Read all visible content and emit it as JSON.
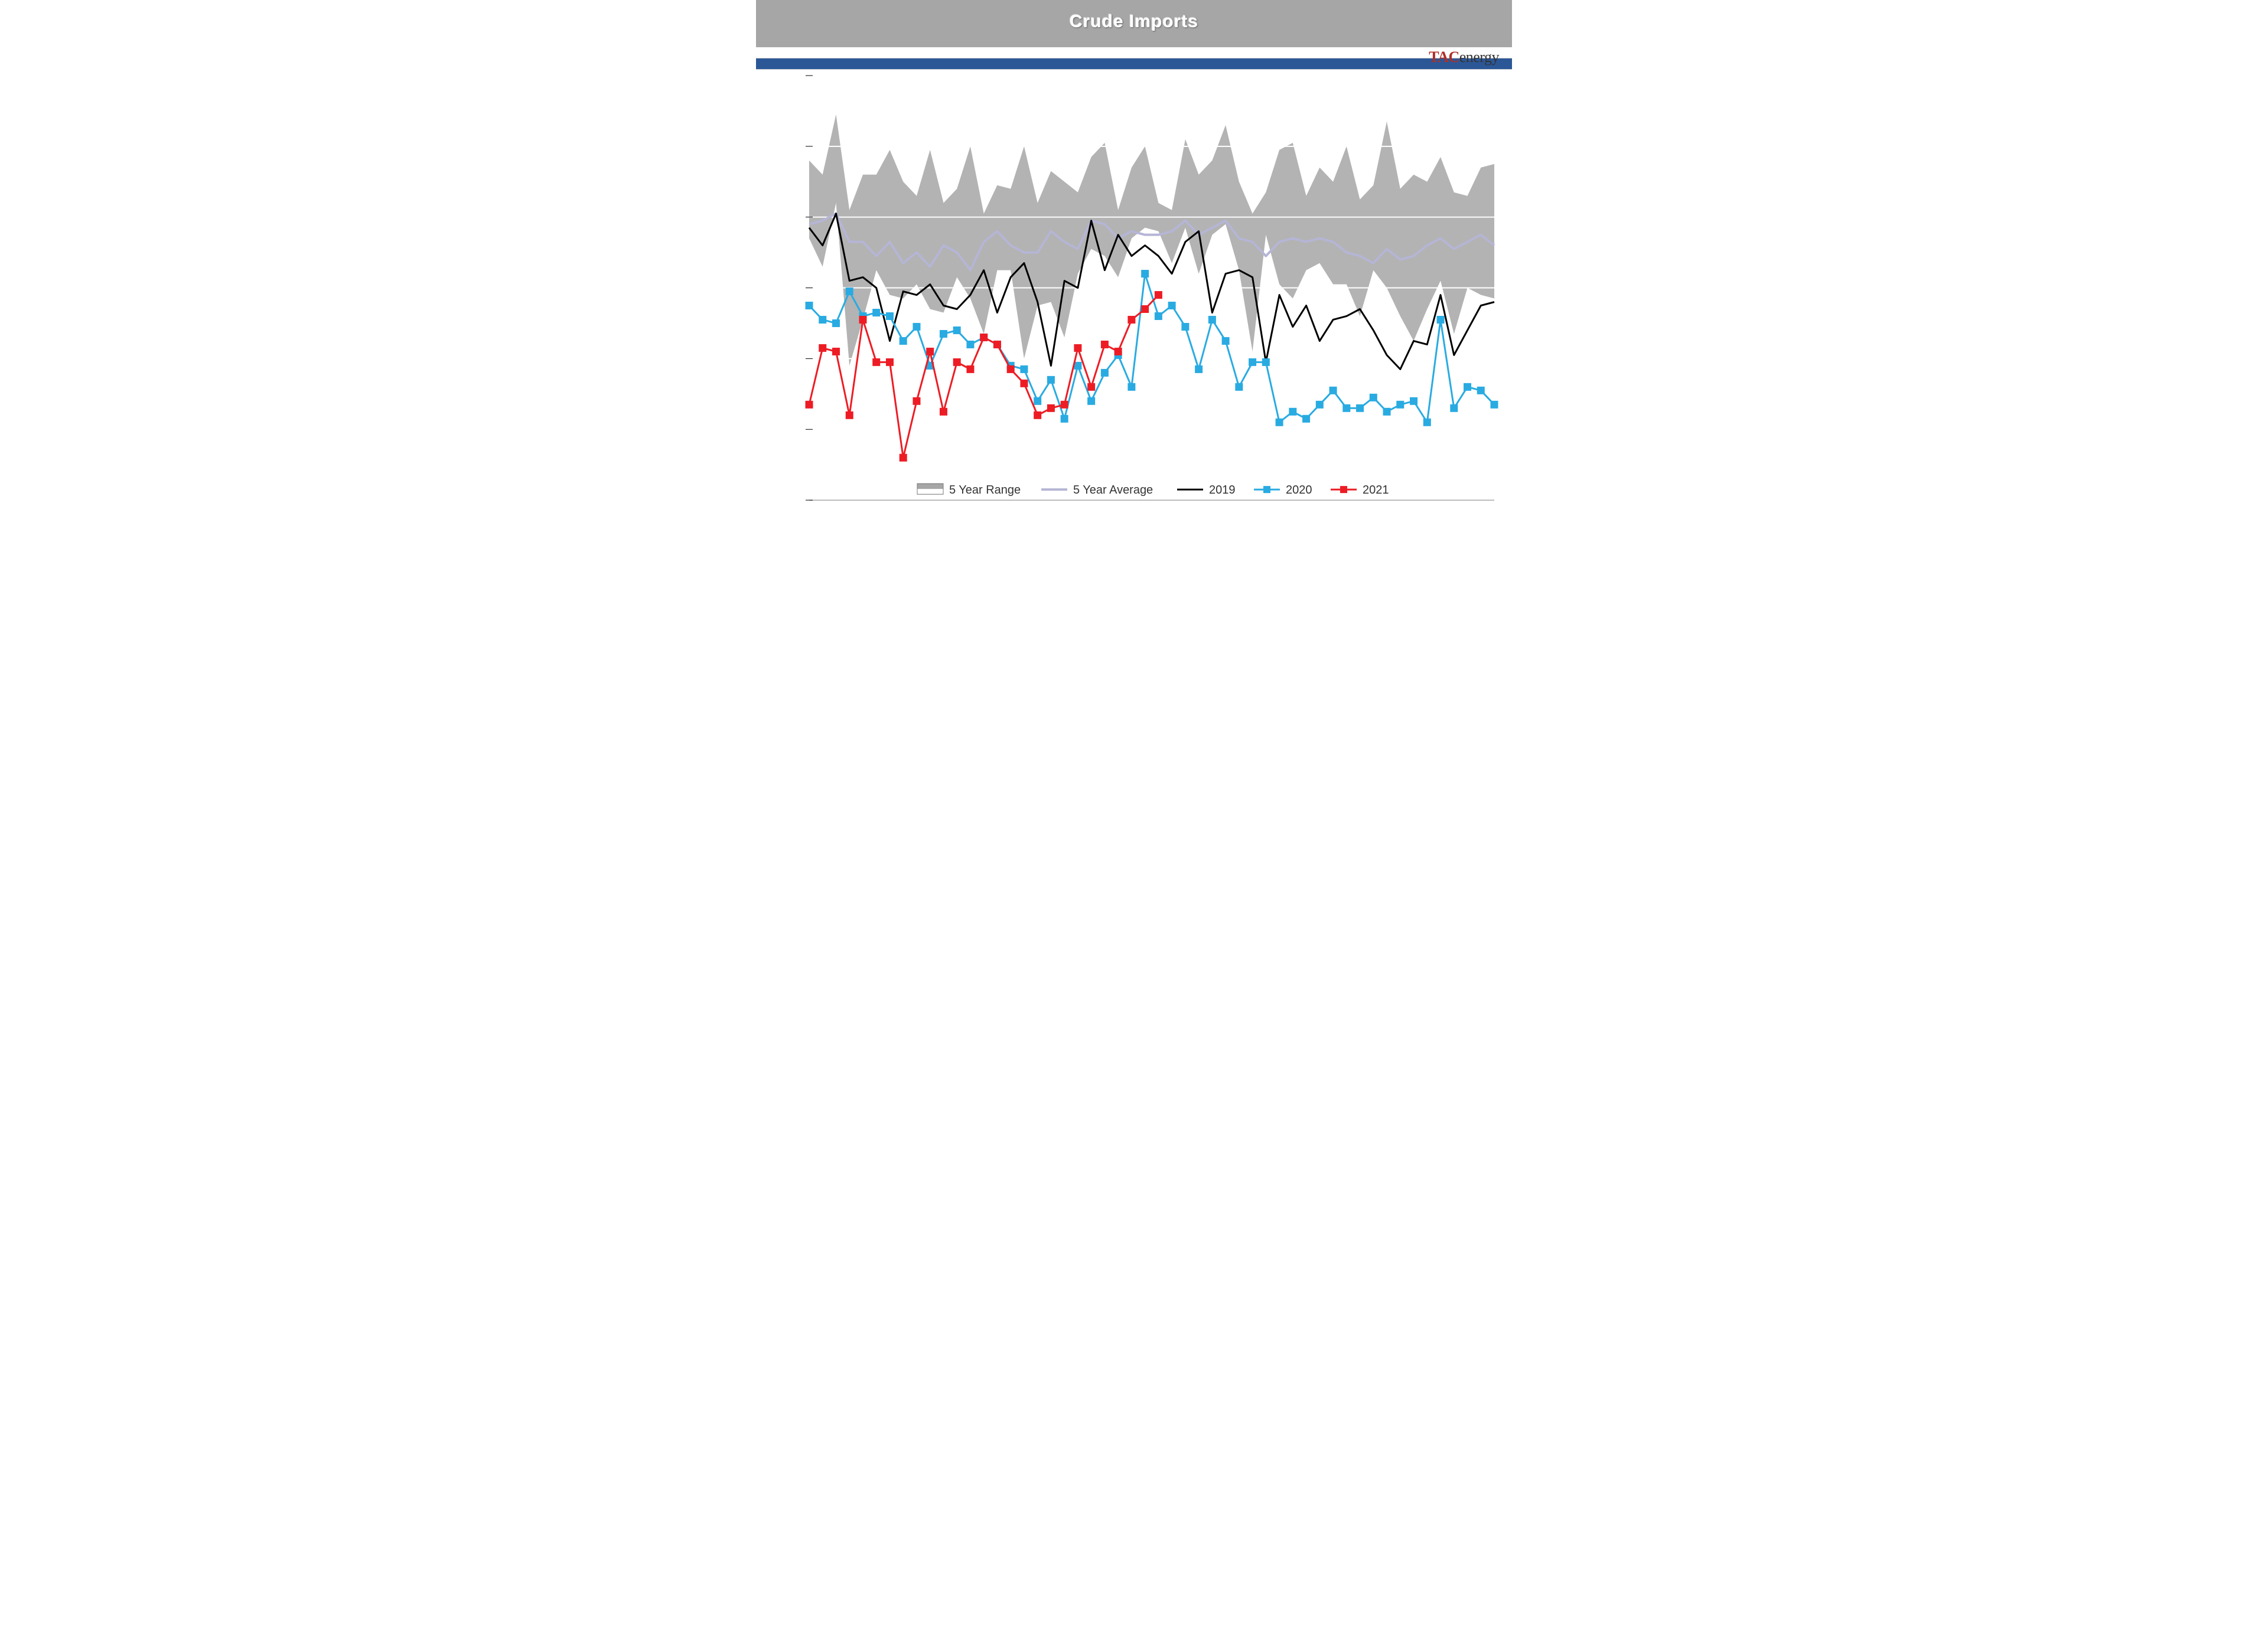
{
  "header": {
    "title": "Crude Imports"
  },
  "logo": {
    "prefix": "TAC",
    "suffix": "energy"
  },
  "chart": {
    "type": "line-with-band",
    "weeks": 52,
    "ylim": [
      4000,
      10000
    ],
    "ytick_step": 1000,
    "background_color": "#ffffff",
    "grid_color": "#ffffff",
    "title_band_color": "#a6a6a6",
    "blue_bar_color": "#2b5797",
    "legend": [
      {
        "label": "5 Year Range",
        "type": "band",
        "fill": "#a6a6a6"
      },
      {
        "label": "5 Year Average",
        "type": "line",
        "color": "#b5b5d6",
        "width": 4
      },
      {
        "label": "2019",
        "type": "line",
        "color": "#000000",
        "width": 3
      },
      {
        "label": "2020",
        "type": "line",
        "color": "#29abe2",
        "width": 3,
        "marker": "square",
        "marker_size": 12
      },
      {
        "label": "2021",
        "type": "line",
        "color": "#ed1c24",
        "width": 3,
        "marker": "square",
        "marker_size": 12
      }
    ],
    "series": {
      "range_high": [
        8800,
        8600,
        9450,
        8100,
        8600,
        8600,
        8950,
        8500,
        8300,
        8950,
        8200,
        8400,
        9000,
        8050,
        8450,
        8400,
        9000,
        8200,
        8650,
        8500,
        8350,
        8850,
        9050,
        8100,
        8700,
        9000,
        8200,
        8100,
        9100,
        8600,
        8800,
        9300,
        8500,
        8050,
        8350,
        8950,
        9050,
        8300,
        8700,
        8500,
        9000,
        8250,
        8450,
        9350,
        8400,
        8600,
        8500,
        8850,
        8350,
        8300,
        8700,
        8750
      ],
      "range_low": [
        7700,
        7300,
        8200,
        5900,
        6550,
        7250,
        6900,
        6850,
        7050,
        6700,
        6650,
        7150,
        6850,
        6350,
        7250,
        7250,
        6000,
        6750,
        6800,
        6300,
        7200,
        7550,
        7450,
        7150,
        7700,
        7850,
        7800,
        7350,
        7850,
        7200,
        7750,
        7900,
        7250,
        6100,
        7750,
        7050,
        6850,
        7250,
        7350,
        7050,
        7050,
        6600,
        7250,
        7000,
        6600,
        6250,
        6700,
        7100,
        6350,
        7000,
        6900,
        6850
      ],
      "avg": [
        7900,
        7950,
        8050,
        7650,
        7650,
        7450,
        7650,
        7350,
        7500,
        7300,
        7600,
        7500,
        7250,
        7650,
        7800,
        7600,
        7500,
        7500,
        7800,
        7650,
        7550,
        7950,
        7900,
        7700,
        7800,
        7750,
        7750,
        7800,
        7950,
        7750,
        7850,
        7950,
        7700,
        7650,
        7450,
        7650,
        7700,
        7650,
        7700,
        7650,
        7500,
        7450,
        7350,
        7550,
        7400,
        7450,
        7600,
        7700,
        7550,
        7650,
        7750,
        7600
      ],
      "y2019": [
        7850,
        7600,
        8050,
        7100,
        7150,
        7000,
        6250,
        6950,
        6900,
        7050,
        6750,
        6700,
        6900,
        7250,
        6650,
        7150,
        7350,
        6800,
        5900,
        7100,
        7000,
        7950,
        7250,
        7750,
        7450,
        7600,
        7450,
        7200,
        7650,
        7800,
        6650,
        7200,
        7250,
        7150,
        5950,
        6900,
        6450,
        6750,
        6250,
        6550,
        6600,
        6700,
        6400,
        6050,
        5850,
        6250,
        6200,
        6900,
        6050,
        6400,
        6750,
        6800
      ],
      "y2020": [
        6750,
        6550,
        6500,
        6950,
        6600,
        6650,
        6600,
        6250,
        6450,
        5900,
        6350,
        6400,
        6200,
        6300,
        6200,
        5900,
        5850,
        5400,
        5700,
        5150,
        5900,
        5400,
        5800,
        6050,
        5600,
        7200,
        6600,
        6750,
        6450,
        5850,
        6550,
        6250,
        5600,
        5950,
        5950,
        5100,
        5250,
        5150,
        5350,
        5550,
        5300,
        5300,
        5450,
        5250,
        5350,
        5400,
        5100,
        6550,
        5300,
        5600,
        5550,
        5350
      ],
      "y2021": [
        5350,
        6150,
        6100,
        5200,
        6550,
        5950,
        5950,
        4600,
        5400,
        6100,
        5250,
        5950,
        5850,
        6300,
        6200,
        5850,
        5650,
        5200,
        5300,
        5350,
        6150,
        5600,
        6200,
        6100,
        6550,
        6700,
        6900
      ]
    },
    "marker": {
      "size": 12,
      "shape": "square"
    }
  }
}
